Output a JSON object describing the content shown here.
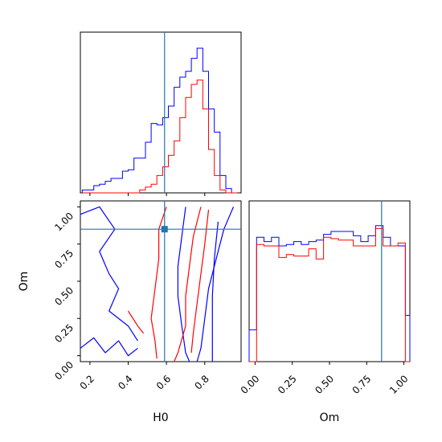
{
  "chart_data": [
    {
      "type": "histogram",
      "panel": "H0 marginal",
      "xlim": [
        0.15,
        0.99
      ],
      "truth": 0.59,
      "bins": [
        0.16,
        0.19,
        0.22,
        0.25,
        0.28,
        0.31,
        0.34,
        0.37,
        0.4,
        0.43,
        0.46,
        0.49,
        0.52,
        0.55,
        0.58,
        0.61,
        0.64,
        0.67,
        0.7,
        0.73,
        0.76,
        0.79,
        0.82,
        0.85,
        0.88,
        0.91,
        0.94,
        0.97
      ],
      "series": [
        {
          "color": "#0000ff",
          "values": [
            0.02,
            0.02,
            0.05,
            0.06,
            0.08,
            0.1,
            0.1,
            0.15,
            0.16,
            0.24,
            0.24,
            0.35,
            0.48,
            0.47,
            0.52,
            0.6,
            0.73,
            0.8,
            0.84,
            0.93,
            1.0,
            0.84,
            0.58,
            0.42,
            0.12,
            0.03,
            0.0
          ]
        },
        {
          "color": "#ff0000",
          "values": [
            0.0,
            0.0,
            0.0,
            0.0,
            0.0,
            0.0,
            0.0,
            0.0,
            0.0,
            0.0,
            0.02,
            0.04,
            0.06,
            0.12,
            0.18,
            0.26,
            0.36,
            0.52,
            0.66,
            0.75,
            0.78,
            0.58,
            0.3,
            0.12,
            0.02,
            0.0,
            0.0
          ]
        }
      ]
    },
    {
      "type": "histogram",
      "panel": "Om marginal",
      "xlim": [
        -0.04,
        1.04
      ],
      "truth": 0.85,
      "bins": [
        -0.04,
        0.01,
        0.06,
        0.11,
        0.16,
        0.21,
        0.26,
        0.31,
        0.36,
        0.41,
        0.46,
        0.51,
        0.56,
        0.61,
        0.66,
        0.71,
        0.76,
        0.81,
        0.86,
        0.91,
        0.96,
        1.01,
        1.04
      ],
      "series": [
        {
          "color": "#0000ff",
          "values": [
            0.22,
            0.86,
            0.83,
            0.86,
            0.8,
            0.81,
            0.83,
            0.81,
            0.83,
            0.84,
            0.88,
            0.9,
            0.9,
            0.9,
            0.87,
            0.83,
            0.87,
            0.94,
            0.86,
            0.8,
            0.8,
            0.32
          ]
        },
        {
          "color": "#ff0000",
          "values": [
            0.0,
            0.81,
            0.8,
            0.8,
            0.72,
            0.74,
            0.73,
            0.73,
            0.78,
            0.71,
            0.86,
            0.85,
            0.84,
            0.84,
            0.8,
            0.8,
            0.8,
            0.92,
            0.8,
            0.8,
            0.82,
            0.0
          ]
        }
      ]
    },
    {
      "type": "contour",
      "panel": "H0 vs Om joint",
      "xlim": [
        0.15,
        0.99
      ],
      "ylim": [
        -0.04,
        1.04
      ],
      "truth": [
        0.59,
        0.85
      ],
      "series": [
        {
          "color": "#0000ff",
          "contours": [
            [
              [
                0.7,
                1.0
              ],
              [
                0.68,
                0.8
              ],
              [
                0.66,
                0.6
              ],
              [
                0.66,
                0.4
              ],
              [
                0.68,
                0.2
              ],
              [
                0.7,
                0.02
              ],
              [
                0.72,
                -0.04
              ]
            ],
            [
              [
                0.95,
                1.0
              ],
              [
                0.9,
                0.85
              ],
              [
                0.86,
                0.65
              ],
              [
                0.82,
                0.45
              ],
              [
                0.8,
                0.25
              ],
              [
                0.78,
                0.05
              ],
              [
                0.76,
                -0.04
              ]
            ],
            [
              [
                0.87,
                0.9
              ],
              [
                0.85,
                0.65
              ],
              [
                0.84,
                0.4
              ],
              [
                0.84,
                0.15
              ],
              [
                0.84,
                -0.04
              ]
            ],
            [
              [
                0.15,
                0.05
              ],
              [
                0.22,
                0.12
              ],
              [
                0.28,
                0.02
              ],
              [
                0.35,
                0.1
              ],
              [
                0.4,
                0.0
              ],
              [
                0.45,
                0.05
              ]
            ],
            [
              [
                0.15,
                0.95
              ],
              [
                0.25,
                1.0
              ],
              [
                0.33,
                0.85
              ],
              [
                0.25,
                0.7
              ],
              [
                0.3,
                0.55
              ],
              [
                0.35,
                0.45
              ],
              [
                0.3,
                0.3
              ],
              [
                0.4,
                0.2
              ],
              [
                0.45,
                0.1
              ]
            ]
          ]
        },
        {
          "color": "#ff0000",
          "contours": [
            [
              [
                0.6,
                1.0
              ],
              [
                0.56,
                0.85
              ],
              [
                0.56,
                0.65
              ],
              [
                0.54,
                0.45
              ],
              [
                0.52,
                0.25
              ],
              [
                0.54,
                0.1
              ],
              [
                0.55,
                -0.02
              ]
            ],
            [
              [
                0.78,
                1.0
              ],
              [
                0.74,
                0.8
              ],
              [
                0.72,
                0.6
              ],
              [
                0.7,
                0.4
              ],
              [
                0.7,
                0.2
              ],
              [
                0.66,
                0.02
              ],
              [
                0.64,
                -0.04
              ]
            ],
            [
              [
                0.82,
                0.98
              ],
              [
                0.8,
                0.75
              ],
              [
                0.78,
                0.55
              ],
              [
                0.76,
                0.35
              ],
              [
                0.74,
                0.15
              ],
              [
                0.73,
                0.02
              ]
            ],
            [
              [
                0.4,
                0.3
              ],
              [
                0.45,
                0.2
              ],
              [
                0.48,
                0.15
              ]
            ]
          ]
        }
      ]
    }
  ],
  "axes": {
    "x_ticks_h0": [
      "0.2",
      "0.4",
      "0.6",
      "0.8"
    ],
    "y_ticks_om": [
      "0.00",
      "0.25",
      "0.50",
      "0.75",
      "1.00"
    ],
    "x_ticks_om": [
      "0.00",
      "0.25",
      "0.50",
      "0.75",
      "1.00"
    ],
    "x_label_h0": "H0",
    "y_label_om": "Om",
    "x_label_om": "Om"
  },
  "colors": {
    "blue": "#0000ff",
    "red": "#ff0000",
    "truth": "#1f77b4"
  }
}
